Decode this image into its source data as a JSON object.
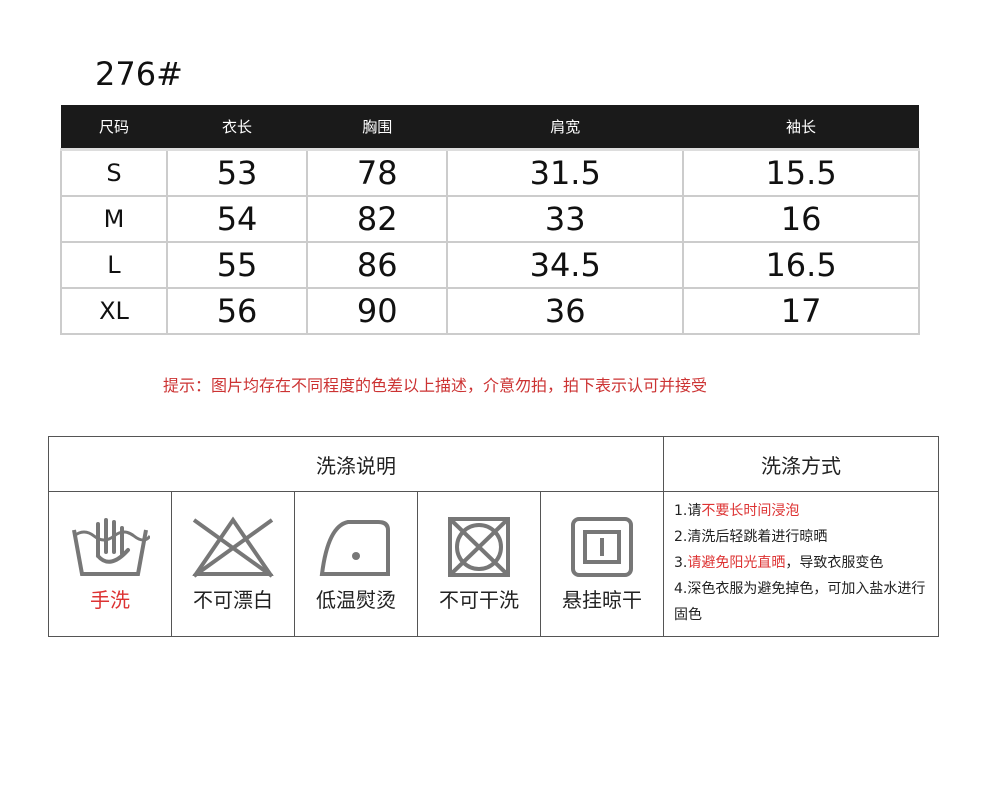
{
  "title": "276#",
  "size_table": {
    "headers": [
      "尺码",
      "衣长",
      "胸围",
      "肩宽",
      "袖长"
    ],
    "rows": [
      [
        "S",
        "53",
        "78",
        "31.5",
        "15.5"
      ],
      [
        "M",
        "54",
        "82",
        "33",
        "16"
      ],
      [
        "L",
        "55",
        "86",
        "34.5",
        "16.5"
      ],
      [
        "XL",
        "56",
        "90",
        "36",
        "17"
      ]
    ]
  },
  "note": "提示：图片均存在不同程度的色差以上描述，介意勿拍，拍下表示认可并接受",
  "care": {
    "header_left": "洗涤说明",
    "header_right": "洗涤方式",
    "icons": [
      {
        "icon": "hand-wash-icon",
        "label": "手洗",
        "color": "#d33"
      },
      {
        "icon": "no-bleach-icon",
        "label": "不可漂白"
      },
      {
        "icon": "low-iron-icon",
        "label": "低温熨烫"
      },
      {
        "icon": "no-dry-clean-icon",
        "label": "不可干洗"
      },
      {
        "icon": "hang-dry-icon",
        "label": "悬挂晾干"
      }
    ],
    "tips": [
      {
        "prefix": "1.请",
        "highlight": "不要长时间浸泡",
        "suffix": ""
      },
      {
        "prefix": "2.清洗后轻跳着进行晾晒",
        "highlight": "",
        "suffix": ""
      },
      {
        "prefix": "3.",
        "highlight": "请避免阳光直晒",
        "suffix": "，导致衣服变色"
      },
      {
        "prefix": "4.深色衣服为避免掉色，可加入盐水进行固色",
        "highlight": "",
        "suffix": ""
      }
    ]
  }
}
